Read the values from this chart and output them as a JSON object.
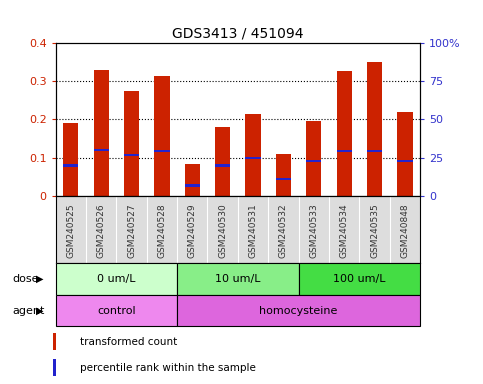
{
  "title": "GDS3413 / 451094",
  "samples": [
    "GSM240525",
    "GSM240526",
    "GSM240527",
    "GSM240528",
    "GSM240529",
    "GSM240530",
    "GSM240531",
    "GSM240532",
    "GSM240533",
    "GSM240534",
    "GSM240535",
    "GSM240848"
  ],
  "transformed_count": [
    0.19,
    0.33,
    0.275,
    0.312,
    0.085,
    0.18,
    0.215,
    0.11,
    0.195,
    0.325,
    0.35,
    0.22
  ],
  "percentile_rank": [
    0.08,
    0.12,
    0.108,
    0.118,
    0.028,
    0.08,
    0.1,
    0.045,
    0.092,
    0.118,
    0.118,
    0.092
  ],
  "bar_color": "#cc2200",
  "percentile_color": "#2222cc",
  "ylim_left": [
    0,
    0.4
  ],
  "ylim_right": [
    0,
    100
  ],
  "yticks_left": [
    0,
    0.1,
    0.2,
    0.3,
    0.4
  ],
  "ytick_labels_left": [
    "0",
    "0.1",
    "0.2",
    "0.3",
    "0.4"
  ],
  "yticks_right": [
    0,
    25,
    50,
    75,
    100
  ],
  "ytick_labels_right": [
    "0",
    "25",
    "50",
    "75",
    "100%"
  ],
  "dose_groups": [
    {
      "label": "0 um/L",
      "start": 0,
      "end": 4,
      "color": "#ccffcc"
    },
    {
      "label": "10 um/L",
      "start": 4,
      "end": 8,
      "color": "#88ee88"
    },
    {
      "label": "100 um/L",
      "start": 8,
      "end": 12,
      "color": "#44dd44"
    }
  ],
  "agent_groups": [
    {
      "label": "control",
      "start": 0,
      "end": 4,
      "color": "#ee88ee"
    },
    {
      "label": "homocysteine",
      "start": 4,
      "end": 12,
      "color": "#dd66dd"
    }
  ],
  "dose_label": "dose",
  "agent_label": "agent",
  "legend_items": [
    {
      "label": "transformed count",
      "color": "#cc2200"
    },
    {
      "label": "percentile rank within the sample",
      "color": "#2222cc"
    }
  ],
  "background_color": "#ffffff",
  "tick_label_color_left": "#cc2200",
  "tick_label_color_right": "#3333cc",
  "label_bg_color": "#dddddd",
  "bar_width": 0.5
}
